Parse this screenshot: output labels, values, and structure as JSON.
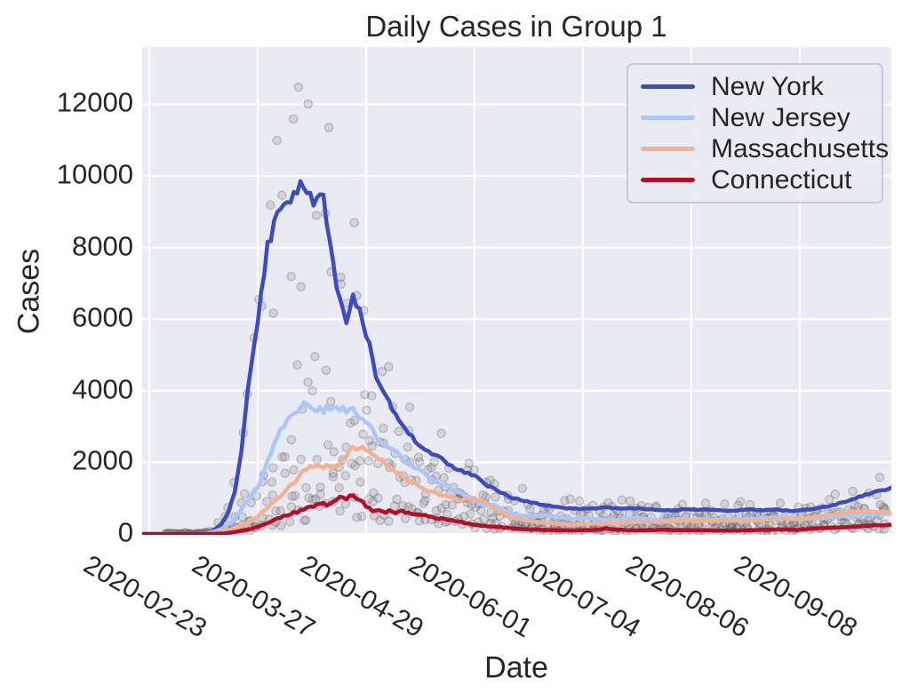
{
  "figure": {
    "background": "#ffffff",
    "axes_background": "#eaeaf2",
    "grid_color": "#ffffff",
    "text_color": "#262626"
  },
  "legend": {
    "items": [
      {
        "label": "New York",
        "color": "#3b4cc0"
      },
      {
        "label": "New Jersey",
        "color": "#aac7fd"
      },
      {
        "label": "Massachusetts",
        "color": "#f3b193"
      },
      {
        "label": "Connecticut",
        "color": "#b70d28"
      }
    ]
  },
  "chart_data": {
    "type": "line",
    "title": "Daily Cases in Group 1",
    "xlabel": "Date",
    "ylabel": "Cases",
    "grid": true,
    "legend_position": "upper right",
    "y_ticks": [
      0,
      2000,
      4000,
      6000,
      8000,
      10000,
      12000
    ],
    "ylim": [
      -25,
      13600
    ],
    "x_day0_date": "2020-02-20",
    "xlim_days": [
      0.84,
      228.9
    ],
    "x_ticks": [
      {
        "day": 3,
        "label": "2020-02-23"
      },
      {
        "day": 36,
        "label": "2020-03-27"
      },
      {
        "day": 69,
        "label": "2020-04-29"
      },
      {
        "day": 102,
        "label": "2020-06-01"
      },
      {
        "day": 135,
        "label": "2020-07-04"
      },
      {
        "day": 168,
        "label": "2020-08-06"
      },
      {
        "day": 201,
        "label": "2020-09-08"
      }
    ],
    "series": [
      {
        "name": "New York",
        "color": "#3b4cc0",
        "points": [
          [
            1,
            0
          ],
          [
            8,
            0
          ],
          [
            14,
            2
          ],
          [
            18,
            15
          ],
          [
            21,
            50
          ],
          [
            23,
            130
          ],
          [
            25,
            280
          ],
          [
            27,
            600
          ],
          [
            29,
            1150
          ],
          [
            31,
            2300
          ],
          [
            33,
            4000
          ],
          [
            35,
            5300
          ],
          [
            36,
            6000
          ],
          [
            38,
            7350
          ],
          [
            39,
            8000
          ],
          [
            41,
            8700
          ],
          [
            43,
            9050
          ],
          [
            45,
            9400
          ],
          [
            46,
            9200
          ],
          [
            47,
            9350
          ],
          [
            49,
            9900
          ],
          [
            50,
            9650
          ],
          [
            51,
            9400
          ],
          [
            52,
            9600
          ],
          [
            53,
            9250
          ],
          [
            55,
            9500
          ],
          [
            56,
            9350
          ],
          [
            57,
            8800
          ],
          [
            58,
            8100
          ],
          [
            60,
            7000
          ],
          [
            61,
            6700
          ],
          [
            63,
            6000
          ],
          [
            65,
            6650
          ],
          [
            66,
            6500
          ],
          [
            67,
            6250
          ],
          [
            68,
            5900
          ],
          [
            70,
            5250
          ],
          [
            72,
            4400
          ],
          [
            74,
            4000
          ],
          [
            76,
            3700
          ],
          [
            78,
            3300
          ],
          [
            81,
            2900
          ],
          [
            84,
            2600
          ],
          [
            88,
            2300
          ],
          [
            92,
            2080
          ],
          [
            96,
            1850
          ],
          [
            100,
            1700
          ],
          [
            102,
            1620
          ],
          [
            106,
            1350
          ],
          [
            110,
            1150
          ],
          [
            114,
            1000
          ],
          [
            118,
            900
          ],
          [
            122,
            820
          ],
          [
            126,
            760
          ],
          [
            130,
            720
          ],
          [
            134,
            700
          ],
          [
            138,
            715
          ],
          [
            142,
            745
          ],
          [
            146,
            700
          ],
          [
            150,
            730
          ],
          [
            154,
            700
          ],
          [
            158,
            670
          ],
          [
            162,
            650
          ],
          [
            166,
            690
          ],
          [
            170,
            665
          ],
          [
            174,
            685
          ],
          [
            178,
            645
          ],
          [
            182,
            665
          ],
          [
            186,
            680
          ],
          [
            190,
            660
          ],
          [
            194,
            680
          ],
          [
            198,
            645
          ],
          [
            202,
            665
          ],
          [
            206,
            705
          ],
          [
            210,
            780
          ],
          [
            214,
            880
          ],
          [
            218,
            1000
          ],
          [
            222,
            1120
          ],
          [
            226,
            1230
          ],
          [
            229,
            1275
          ]
        ]
      },
      {
        "name": "New Jersey",
        "color": "#aac7fd",
        "points": [
          [
            1,
            0
          ],
          [
            16,
            2
          ],
          [
            20,
            15
          ],
          [
            23,
            70
          ],
          [
            25,
            140
          ],
          [
            28,
            320
          ],
          [
            31,
            680
          ],
          [
            34,
            1080
          ],
          [
            36,
            1320
          ],
          [
            38,
            1780
          ],
          [
            40,
            2250
          ],
          [
            42,
            2700
          ],
          [
            44,
            3050
          ],
          [
            46,
            3300
          ],
          [
            48,
            3500
          ],
          [
            50,
            3620
          ],
          [
            52,
            3480
          ],
          [
            53,
            3570
          ],
          [
            54,
            3460
          ],
          [
            55,
            3560
          ],
          [
            56,
            3420
          ],
          [
            57,
            3520
          ],
          [
            58,
            3550
          ],
          [
            59,
            3440
          ],
          [
            61,
            3540
          ],
          [
            62,
            3560
          ],
          [
            63,
            3490
          ],
          [
            64,
            3500
          ],
          [
            66,
            3400
          ],
          [
            68,
            3250
          ],
          [
            70,
            3090
          ],
          [
            72,
            2750
          ],
          [
            75,
            2500
          ],
          [
            78,
            2250
          ],
          [
            81,
            2050
          ],
          [
            84,
            1850
          ],
          [
            87,
            1650
          ],
          [
            90,
            1500
          ],
          [
            93,
            1350
          ],
          [
            96,
            1200
          ],
          [
            99,
            1090
          ],
          [
            102,
            950
          ],
          [
            104,
            830
          ],
          [
            106,
            800
          ],
          [
            108,
            815
          ],
          [
            110,
            700
          ],
          [
            112,
            620
          ],
          [
            114,
            560
          ],
          [
            116,
            520
          ],
          [
            120,
            480
          ],
          [
            124,
            530
          ],
          [
            126,
            500
          ],
          [
            128,
            460
          ],
          [
            132,
            420
          ],
          [
            136,
            445
          ],
          [
            140,
            410
          ],
          [
            144,
            390
          ],
          [
            148,
            420
          ],
          [
            152,
            445
          ],
          [
            156,
            400
          ],
          [
            160,
            380
          ],
          [
            164,
            415
          ],
          [
            168,
            390
          ],
          [
            172,
            420
          ],
          [
            176,
            400
          ],
          [
            180,
            430
          ],
          [
            184,
            405
          ],
          [
            188,
            435
          ],
          [
            192,
            455
          ],
          [
            196,
            470
          ],
          [
            200,
            450
          ],
          [
            204,
            420
          ],
          [
            208,
            450
          ],
          [
            212,
            480
          ],
          [
            216,
            510
          ],
          [
            220,
            540
          ],
          [
            224,
            560
          ],
          [
            229,
            575
          ]
        ]
      },
      {
        "name": "Massachusetts",
        "color": "#f3b193",
        "points": [
          [
            1,
            0
          ],
          [
            18,
            2
          ],
          [
            22,
            20
          ],
          [
            24,
            55
          ],
          [
            27,
            115
          ],
          [
            30,
            185
          ],
          [
            33,
            300
          ],
          [
            36,
            500
          ],
          [
            39,
            750
          ],
          [
            42,
            1000
          ],
          [
            45,
            1250
          ],
          [
            48,
            1550
          ],
          [
            51,
            1800
          ],
          [
            53,
            1920
          ],
          [
            55,
            1850
          ],
          [
            57,
            1960
          ],
          [
            59,
            1900
          ],
          [
            61,
            2010
          ],
          [
            63,
            2150
          ],
          [
            65,
            2400
          ],
          [
            67,
            2450
          ],
          [
            69,
            2350
          ],
          [
            71,
            2250
          ],
          [
            73,
            2100
          ],
          [
            76,
            1900
          ],
          [
            79,
            1700
          ],
          [
            82,
            1500
          ],
          [
            85,
            1350
          ],
          [
            88,
            1200
          ],
          [
            91,
            1100
          ],
          [
            94,
            1050
          ],
          [
            97,
            950
          ],
          [
            100,
            1000
          ],
          [
            102,
            980
          ],
          [
            104,
            950
          ],
          [
            106,
            850
          ],
          [
            108,
            700
          ],
          [
            110,
            600
          ],
          [
            112,
            520
          ],
          [
            114,
            450
          ],
          [
            117,
            400
          ],
          [
            120,
            350
          ],
          [
            124,
            310
          ],
          [
            128,
            280
          ],
          [
            132,
            260
          ],
          [
            136,
            272
          ],
          [
            140,
            290
          ],
          [
            144,
            310
          ],
          [
            148,
            330
          ],
          [
            152,
            350
          ],
          [
            156,
            330
          ],
          [
            160,
            350
          ],
          [
            164,
            372
          ],
          [
            168,
            358
          ],
          [
            172,
            380
          ],
          [
            176,
            362
          ],
          [
            180,
            385
          ],
          [
            184,
            368
          ],
          [
            188,
            385
          ],
          [
            192,
            405
          ],
          [
            196,
            430
          ],
          [
            200,
            400
          ],
          [
            204,
            450
          ],
          [
            208,
            500
          ],
          [
            212,
            550
          ],
          [
            216,
            600
          ],
          [
            220,
            632
          ],
          [
            224,
            615
          ],
          [
            229,
            620
          ]
        ]
      },
      {
        "name": "Connecticut",
        "color": "#b70d28",
        "points": [
          [
            1,
            0
          ],
          [
            22,
            2
          ],
          [
            26,
            15
          ],
          [
            29,
            55
          ],
          [
            31,
            90
          ],
          [
            33,
            120
          ],
          [
            36,
            200
          ],
          [
            39,
            300
          ],
          [
            42,
            420
          ],
          [
            45,
            520
          ],
          [
            48,
            620
          ],
          [
            51,
            720
          ],
          [
            54,
            800
          ],
          [
            56,
            830
          ],
          [
            57,
            810
          ],
          [
            58,
            850
          ],
          [
            60,
            950
          ],
          [
            61,
            1000
          ],
          [
            62,
            1050
          ],
          [
            63,
            1000
          ],
          [
            64,
            1080
          ],
          [
            65,
            1040
          ],
          [
            66,
            1015
          ],
          [
            67,
            950
          ],
          [
            68,
            895
          ],
          [
            69,
            790
          ],
          [
            70,
            700
          ],
          [
            71,
            660
          ],
          [
            73,
            640
          ],
          [
            75,
            625
          ],
          [
            76,
            645
          ],
          [
            78,
            600
          ],
          [
            80,
            622
          ],
          [
            82,
            580
          ],
          [
            84,
            540
          ],
          [
            86,
            558
          ],
          [
            88,
            500
          ],
          [
            90,
            460
          ],
          [
            92,
            420
          ],
          [
            95,
            380
          ],
          [
            98,
            330
          ],
          [
            101,
            280
          ],
          [
            104,
            240
          ],
          [
            107,
            210
          ],
          [
            110,
            190
          ],
          [
            113,
            165
          ],
          [
            116,
            140
          ],
          [
            120,
            122
          ],
          [
            124,
            110
          ],
          [
            128,
            100
          ],
          [
            132,
            98
          ],
          [
            136,
            108
          ],
          [
            140,
            118
          ],
          [
            142,
            158
          ],
          [
            144,
            128
          ],
          [
            148,
            108
          ],
          [
            152,
            100
          ],
          [
            156,
            110
          ],
          [
            160,
            116
          ],
          [
            164,
            106
          ],
          [
            168,
            99
          ],
          [
            172,
            108
          ],
          [
            176,
            100
          ],
          [
            180,
            94
          ],
          [
            184,
            100
          ],
          [
            188,
            110
          ],
          [
            192,
            118
          ],
          [
            196,
            130
          ],
          [
            200,
            112
          ],
          [
            204,
            148
          ],
          [
            208,
            160
          ],
          [
            212,
            175
          ],
          [
            216,
            200
          ],
          [
            220,
            225
          ],
          [
            224,
            240
          ],
          [
            229,
            252
          ]
        ]
      }
    ],
    "scatter": {
      "description": "gray translucent daily-value points around each line",
      "seed": 11,
      "start_day": 8,
      "end_day": 228,
      "step_days": 1.5,
      "mult_min": 0.42,
      "mult_max": 1.38,
      "abs_jitter": 28,
      "x_jitter_days": 0.8,
      "max_value": 12480,
      "radius": 4.6,
      "fill": "#6e6e6e",
      "fill_opacity": 0.18,
      "stroke": "#4f4f4f",
      "stroke_opacity": 0.3
    }
  }
}
